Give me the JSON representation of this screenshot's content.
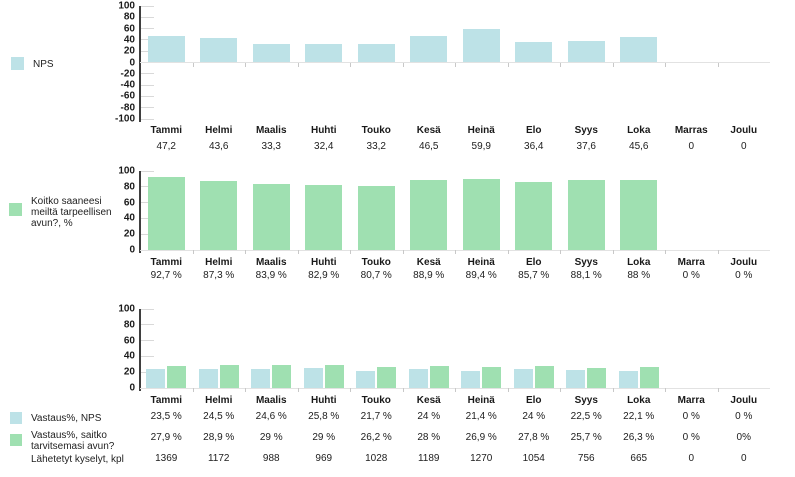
{
  "palette": {
    "blue": "#bde2e7",
    "green": "#9fe0b1",
    "axis": "#3f3f3f",
    "tick_stub": "#d9d9d9",
    "baseline": "#e2e2e2",
    "text": "#1a1a1a"
  },
  "chart_data": [
    {
      "type": "bar",
      "legend": "NPS",
      "series_color": "blue",
      "title": "",
      "xlabel": "",
      "ylabel": "",
      "ylim": [
        -100,
        100
      ],
      "yticks": [
        100,
        80,
        60,
        40,
        20,
        0,
        -20,
        -40,
        -60,
        -80,
        -100
      ],
      "grid": "off",
      "legend_position": "left",
      "categories": [
        "Tammi",
        "Helmi",
        "Maalis",
        "Huhti",
        "Touko",
        "Kesä",
        "Heinä",
        "Elo",
        "Syys",
        "Loka",
        "Marras",
        "Joulu"
      ],
      "values": [
        47.2,
        43.6,
        33.3,
        32.4,
        33.2,
        46.5,
        59.9,
        36.4,
        37.6,
        45.6,
        0,
        0
      ],
      "value_labels": [
        "47,2",
        "43,6",
        "33,3",
        "32,4",
        "33,2",
        "46,5",
        "59,9",
        "36,4",
        "37,6",
        "45,6",
        "0",
        "0"
      ]
    },
    {
      "type": "bar",
      "legend": "Koitko saaneesi meiltä tarpeellisen avun?, %",
      "series_color": "green",
      "title": "",
      "xlabel": "",
      "ylabel": "",
      "ylim": [
        0,
        100
      ],
      "yticks": [
        100,
        80,
        60,
        40,
        20,
        0
      ],
      "grid": "off",
      "legend_position": "left",
      "categories": [
        "Tammi",
        "Helmi",
        "Maalis",
        "Huhti",
        "Touko",
        "Kesä",
        "Heinä",
        "Elo",
        "Syys",
        "Loka",
        "Marra",
        "Joulu"
      ],
      "values": [
        92.7,
        87.3,
        83.9,
        82.9,
        80.7,
        88.9,
        89.4,
        85.7,
        88.1,
        88,
        0,
        0
      ],
      "value_labels": [
        "92,7 %",
        "87,3 %",
        "83,9 %",
        "82,9 %",
        "80,7 %",
        "88,9 %",
        "89,4 %",
        "85,7 %",
        "88,1 %",
        "88 %",
        "0 %",
        "0 %"
      ]
    },
    {
      "type": "grouped-bar",
      "title": "",
      "xlabel": "",
      "ylabel": "",
      "ylim": [
        0,
        100
      ],
      "yticks": [
        100,
        80,
        60,
        40,
        20,
        0
      ],
      "grid": "off",
      "legend_position": "left",
      "categories": [
        "Tammi",
        "Helmi",
        "Maalis",
        "Huhti",
        "Touko",
        "Kesä",
        "Heinä",
        "Elo",
        "Syys",
        "Loka",
        "Marra",
        "Joulu"
      ],
      "series": [
        {
          "name": "Vastaus%, NPS",
          "color": "blue",
          "values": [
            23.5,
            24.5,
            24.6,
            25.8,
            21.7,
            24,
            21.4,
            24,
            22.5,
            22.1,
            0,
            0
          ],
          "value_labels": [
            "23,5 %",
            "24,5 %",
            "24,6 %",
            "25,8 %",
            "21,7 %",
            "24 %",
            "21,4 %",
            "24 %",
            "22,5 %",
            "22,1 %",
            "0 %",
            "0 %"
          ]
        },
        {
          "name": "Vastaus%, saitko tarvitsemasi avun?",
          "color": "green",
          "values": [
            27.9,
            28.9,
            29,
            29,
            26.2,
            28,
            26.9,
            27.8,
            25.7,
            26.3,
            0,
            0
          ],
          "value_labels": [
            "27,9 %",
            "28,9 %",
            "29 %",
            "29 %",
            "26,2 %",
            "28 %",
            "26,9 %",
            "27,8 %",
            "25,7 %",
            "26,3 %",
            "0 %",
            "0%"
          ]
        }
      ],
      "extra_row": {
        "label": "Lähetetyt kyselyt, kpl",
        "values": [
          1369,
          1172,
          988,
          969,
          1028,
          1189,
          1270,
          1054,
          756,
          665,
          0,
          0
        ],
        "value_labels": [
          "1369",
          "1172",
          "988",
          "969",
          "1028",
          "1189",
          "1270",
          "1054",
          "756",
          "665",
          "0",
          "0"
        ]
      }
    }
  ]
}
